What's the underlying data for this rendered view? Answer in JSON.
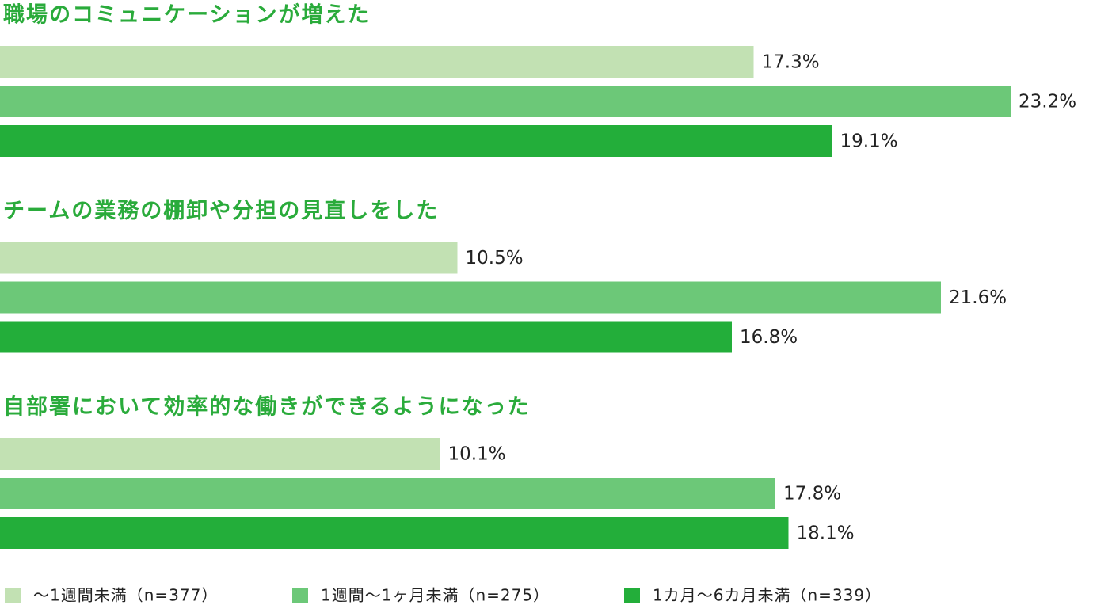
{
  "chart_data": {
    "type": "bar",
    "orientation": "horizontal",
    "categories": [
      "職場のコミュニケーションが増えた",
      "チームの業務の棚卸や分担の見直しをした",
      "自部署において効率的な働きができるようになった"
    ],
    "series": [
      {
        "name": "～1週間未満（n=377）",
        "color": "#c2e1b3",
        "values": [
          17.3,
          10.5,
          10.1
        ],
        "value_labels": [
          "17.3%",
          "10.5%",
          "10.1%"
        ]
      },
      {
        "name": "1週間～1ヶ月未満（n=275）",
        "color": "#6cc878",
        "values": [
          23.2,
          21.6,
          17.8
        ],
        "value_labels": [
          "23.2%",
          "21.6%",
          "17.8%"
        ]
      },
      {
        "name": "1カ月～6カ月未満（n=339）",
        "color": "#23ae3a",
        "values": [
          19.1,
          16.8,
          18.1
        ],
        "value_labels": [
          "19.1%",
          "16.8%",
          "18.1%"
        ]
      }
    ],
    "legend": "bottom"
  }
}
